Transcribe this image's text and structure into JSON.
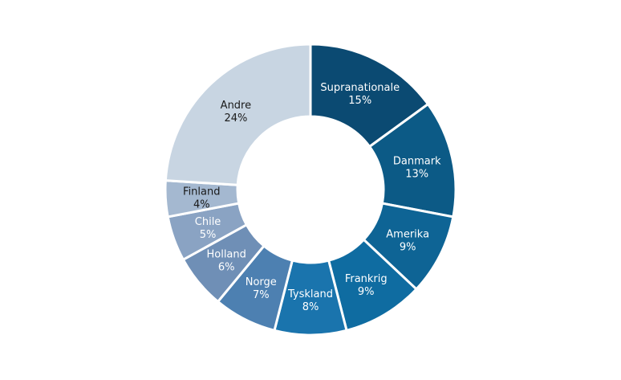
{
  "chart_data": {
    "type": "pie",
    "variant": "donut",
    "title": "",
    "categories": [
      "Supranationale",
      "Danmark",
      "Amerika",
      "Frankrig",
      "Tyskland",
      "Norge",
      "Holland",
      "Chile",
      "Finland",
      "Andre"
    ],
    "values": [
      15,
      13,
      9,
      9,
      8,
      7,
      6,
      5,
      4,
      24
    ],
    "value_labels": [
      "15%",
      "13%",
      "9%",
      "9%",
      "8%",
      "7%",
      "6%",
      "5%",
      "4%",
      "24%"
    ],
    "colors": [
      "#0b4a72",
      "#0c5a86",
      "#0e6495",
      "#0f6ca1",
      "#1a74ad",
      "#4d80b1",
      "#6f8fb6",
      "#8aa3c3",
      "#a4b8d0",
      "#c8d5e2"
    ],
    "label_colors": [
      "#ffffff",
      "#ffffff",
      "#ffffff",
      "#ffffff",
      "#ffffff",
      "#ffffff",
      "#ffffff",
      "#ffffff",
      "#1a1a1a",
      "#1a1a1a"
    ],
    "start": "12 o'clock",
    "direction": "clockwise",
    "legend": "none"
  }
}
